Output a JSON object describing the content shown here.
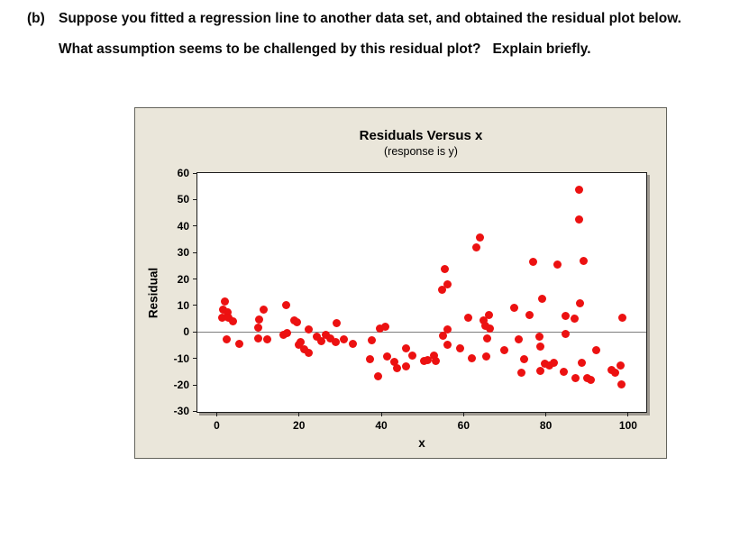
{
  "question": {
    "prefix": "(b)",
    "line1": "Suppose you fitted a regression line to another data set, and obtained the residual plot below.",
    "line2": "What assumption seems to be challenged by this residual plot?   Explain briefly."
  },
  "chart_data": {
    "type": "scatter",
    "title": "Residuals Versus x",
    "subtitle": "(response is y)",
    "xlabel": "x",
    "ylabel": "Residual",
    "xlim": [
      -4.7,
      104.4
    ],
    "ylim": [
      -30.2,
      60
    ],
    "xticks": [
      0,
      20,
      40,
      60,
      80,
      100
    ],
    "yticks": [
      60,
      50,
      40,
      30,
      20,
      10,
      0,
      -10,
      -20,
      -30
    ],
    "grid": false,
    "legend": "none",
    "zero_line": true,
    "point_color": "#ec1111",
    "panel_bg": "#eae6da",
    "points": [
      [
        1.9,
        11.4
      ],
      [
        1.6,
        8.3
      ],
      [
        2.6,
        7.5
      ],
      [
        1.3,
        5.5
      ],
      [
        2.9,
        5.2
      ],
      [
        4.0,
        4.1
      ],
      [
        2.5,
        -2.8
      ],
      [
        5.5,
        -4.5
      ],
      [
        11.4,
        8.6
      ],
      [
        10.4,
        4.7
      ],
      [
        10.1,
        1.7
      ],
      [
        10.0,
        -2.5
      ],
      [
        12.2,
        -2.7
      ],
      [
        16.8,
        10.3
      ],
      [
        18.8,
        4.3
      ],
      [
        19.4,
        3.5
      ],
      [
        16.2,
        -1.1
      ],
      [
        17.2,
        -0.4
      ],
      [
        22.3,
        1.1
      ],
      [
        20.4,
        -3.8
      ],
      [
        19.9,
        -4.8
      ],
      [
        21.2,
        -6.6
      ],
      [
        22.4,
        -7.8
      ],
      [
        24.4,
        -1.9
      ],
      [
        25.5,
        -3.6
      ],
      [
        26.6,
        -1.1
      ],
      [
        27.7,
        -2.5
      ],
      [
        29.2,
        3.2
      ],
      [
        29.0,
        -3.8
      ],
      [
        31.0,
        -2.7
      ],
      [
        33.0,
        -4.4
      ],
      [
        37.8,
        -3.2
      ],
      [
        37.2,
        -10.3
      ],
      [
        39.6,
        1.4
      ],
      [
        41.0,
        1.9
      ],
      [
        39.3,
        -16.8
      ],
      [
        41.5,
        -9.4
      ],
      [
        43.2,
        -11.4
      ],
      [
        43.8,
        -13.7
      ],
      [
        46.0,
        -6.2
      ],
      [
        46.0,
        -13.0
      ],
      [
        47.6,
        -9.0
      ],
      [
        50.4,
        -11.0
      ],
      [
        51.2,
        -10.5
      ],
      [
        52.9,
        -8.9
      ],
      [
        53.3,
        -11.1
      ],
      [
        54.7,
        15.9
      ],
      [
        56.1,
        17.9
      ],
      [
        55.5,
        23.9
      ],
      [
        55.0,
        -1.4
      ],
      [
        56.2,
        0.9
      ],
      [
        56.1,
        -4.8
      ],
      [
        59.1,
        -6.1
      ],
      [
        61.9,
        -10.0
      ],
      [
        61.2,
        5.2
      ],
      [
        64.0,
        35.7
      ],
      [
        63.2,
        32.0
      ],
      [
        66.1,
        6.3
      ],
      [
        64.9,
        4.4
      ],
      [
        65.3,
        2.2
      ],
      [
        66.3,
        1.4
      ],
      [
        65.8,
        -2.4
      ],
      [
        65.6,
        -9.1
      ],
      [
        69.9,
        -7.0
      ],
      [
        72.2,
        9.1
      ],
      [
        73.5,
        -2.8
      ],
      [
        74.7,
        -10.4
      ],
      [
        74.1,
        -15.5
      ],
      [
        76.1,
        6.5
      ],
      [
        77.0,
        26.4
      ],
      [
        79.1,
        12.6
      ],
      [
        78.5,
        -1.8
      ],
      [
        78.7,
        -5.6
      ],
      [
        78.7,
        -14.6
      ],
      [
        79.8,
        -12.0
      ],
      [
        80.8,
        -12.8
      ],
      [
        82.0,
        -11.8
      ],
      [
        82.8,
        25.5
      ],
      [
        84.9,
        6.2
      ],
      [
        86.9,
        5.1
      ],
      [
        84.7,
        -0.6
      ],
      [
        84.3,
        -14.9
      ],
      [
        87.2,
        -17.6
      ],
      [
        88.3,
        10.8
      ],
      [
        88.7,
        -11.5
      ],
      [
        88.1,
        53.6
      ],
      [
        88.0,
        42.6
      ],
      [
        89.1,
        26.7
      ],
      [
        90.0,
        -17.3
      ],
      [
        91.0,
        -18.0
      ],
      [
        92.3,
        -6.9
      ],
      [
        96.0,
        -14.3
      ],
      [
        96.8,
        -15.3
      ],
      [
        98.1,
        -12.7
      ],
      [
        98.4,
        -19.8
      ],
      [
        98.6,
        5.4
      ]
    ]
  }
}
